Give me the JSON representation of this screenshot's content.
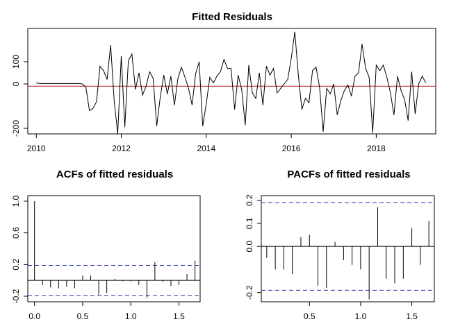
{
  "chart_data": [
    {
      "type": "line",
      "title": "Fitted Residuals",
      "xlabel": "",
      "ylabel": "",
      "xlim": [
        2009.8,
        2019.4
      ],
      "ylim": [
        -225,
        250
      ],
      "x_ticks": [
        2010,
        2012,
        2014,
        2016,
        2018
      ],
      "y_ticks": [
        -200,
        0,
        100
      ],
      "x_tick_labels": [
        "2010",
        "2012",
        "2014",
        "2016",
        "2018"
      ],
      "y_tick_labels": [
        "-200",
        "0",
        "100"
      ],
      "hline": {
        "y": -10,
        "color": "#b22222"
      },
      "x_start": 2010.0,
      "x_step": 0.0833333,
      "values": [
        5,
        2,
        2,
        2,
        2,
        2,
        2,
        2,
        2,
        2,
        2,
        2,
        2,
        0,
        -15,
        -120,
        -110,
        -80,
        80,
        60,
        20,
        175,
        -75,
        -225,
        125,
        -195,
        105,
        135,
        -25,
        50,
        -50,
        -10,
        55,
        25,
        -190,
        -60,
        40,
        -45,
        35,
        -95,
        25,
        75,
        30,
        -20,
        -95,
        45,
        100,
        -190,
        -90,
        30,
        5,
        35,
        55,
        110,
        70,
        70,
        -115,
        40,
        -25,
        -185,
        85,
        -40,
        -65,
        50,
        -95,
        80,
        40,
        70,
        -40,
        -20,
        0,
        20,
        115,
        235,
        40,
        -115,
        -65,
        -85,
        60,
        75,
        -15,
        -215,
        -20,
        -45,
        0,
        -140,
        -75,
        -30,
        -5,
        -55,
        35,
        50,
        180,
        70,
        30,
        -220,
        85,
        60,
        85,
        30,
        -40,
        -140,
        35,
        -30,
        -70,
        -165,
        55,
        -135,
        0,
        35,
        5
      ],
      "grid": false
    },
    {
      "type": "bar",
      "title": "ACFs of fitted residuals",
      "xlabel": "",
      "ylabel": "",
      "xlim": [
        -0.07,
        1.72
      ],
      "ylim": [
        -0.27,
        1.07
      ],
      "x_ticks": [
        0.0,
        0.5,
        1.0,
        1.5
      ],
      "y_ticks": [
        -0.2,
        0.2,
        0.6,
        1.0
      ],
      "x_tick_labels": [
        "0.0",
        "0.5",
        "1.0",
        "1.5"
      ],
      "y_tick_labels": [
        "-0.2",
        "0.2",
        "0.6",
        "1.0"
      ],
      "confidence_band": [
        -0.19,
        0.19
      ],
      "lags": [
        0.0,
        0.0833,
        0.1667,
        0.25,
        0.3333,
        0.4167,
        0.5,
        0.5833,
        0.6667,
        0.75,
        0.8333,
        0.9167,
        1.0,
        1.0833,
        1.1667,
        1.25,
        1.3333,
        1.4167,
        1.5,
        1.5833,
        1.6667
      ],
      "values": [
        1.0,
        -0.06,
        -0.09,
        -0.1,
        -0.08,
        -0.1,
        0.06,
        0.06,
        -0.18,
        -0.16,
        0.02,
        -0.01,
        -0.01,
        -0.06,
        -0.22,
        0.23,
        -0.02,
        -0.07,
        -0.06,
        0.08,
        0.25
      ],
      "grid": false
    },
    {
      "type": "bar",
      "title": "PACFs of fitted residuals",
      "xlabel": "",
      "ylabel": "",
      "xlim": [
        0.03,
        1.72
      ],
      "ylim": [
        -0.24,
        0.22
      ],
      "x_ticks": [
        0.5,
        1.0,
        1.5
      ],
      "y_ticks": [
        -0.2,
        0.0,
        0.1,
        0.2
      ],
      "x_tick_labels": [
        "0.5",
        "1.0",
        "1.5"
      ],
      "y_tick_labels": [
        "-0.2",
        "0.0",
        "0.1",
        "0.2"
      ],
      "confidence_band": [
        -0.19,
        0.19
      ],
      "lags": [
        0.0833,
        0.1667,
        0.25,
        0.3333,
        0.4167,
        0.5,
        0.5833,
        0.6667,
        0.75,
        0.8333,
        0.9167,
        1.0,
        1.0833,
        1.1667,
        1.25,
        1.3333,
        1.4167,
        1.5,
        1.5833,
        1.6667
      ],
      "values": [
        -0.05,
        -0.1,
        -0.1,
        -0.12,
        0.04,
        0.05,
        -0.17,
        -0.18,
        0.02,
        -0.06,
        -0.08,
        -0.1,
        -0.23,
        0.17,
        -0.14,
        -0.16,
        -0.14,
        0.08,
        -0.08,
        0.11
      ],
      "grid": false
    }
  ]
}
